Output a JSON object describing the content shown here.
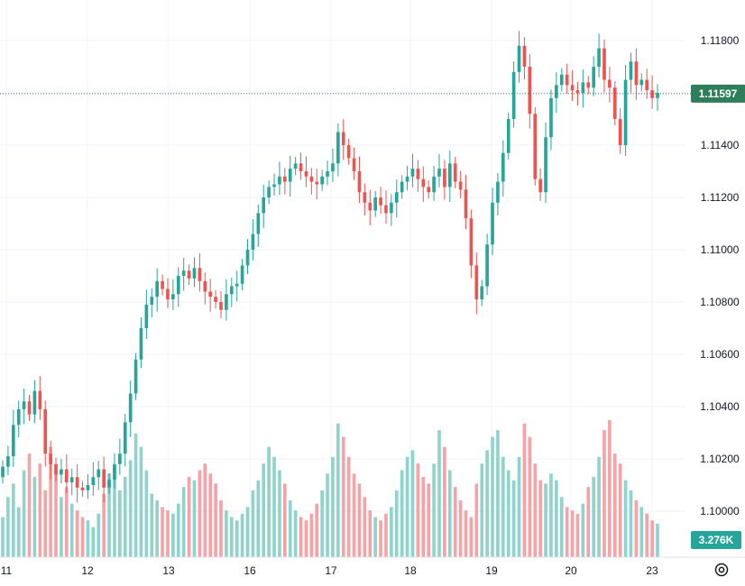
{
  "chart_data": {
    "type": "candlestick",
    "title": "",
    "xlabel": "",
    "ylabel": "",
    "ylim": [
      1.0985,
      1.119
    ],
    "y_ticks": [
      "1.11800",
      "1.11600",
      "1.11400",
      "1.11200",
      "1.11000",
      "1.10800",
      "1.10600",
      "1.10400",
      "1.10200",
      "1.10000"
    ],
    "y_tick_values": [
      1.118,
      1.116,
      1.114,
      1.112,
      1.11,
      1.108,
      1.106,
      1.104,
      1.102,
      1.1
    ],
    "x_ticks": [
      "11",
      "12",
      "13",
      "16",
      "17",
      "18",
      "19",
      "20",
      "23"
    ],
    "last_price": "1.11597",
    "last_price_value": 1.11597,
    "volume_label": "3.276K",
    "grid": true,
    "colors": {
      "up": "#26a69a",
      "down": "#ef5350",
      "up_volume": "#8fd4cc",
      "down_volume": "#f5a3a6",
      "price_badge": "#2e7d5b",
      "volume_badge": "#26a69a",
      "grid": "#f0f3fa"
    },
    "price_series": [
      1.1017,
      1.1021,
      1.1033,
      1.1039,
      1.1042,
      1.1037,
      1.1046,
      1.1039,
      1.1022,
      1.1018,
      1.1014,
      1.1016,
      1.1011,
      1.1013,
      1.1009,
      1.1008,
      1.101,
      1.1013,
      1.1016,
      1.1009,
      1.1012,
      1.1018,
      1.1022,
      1.1034,
      1.1045,
      1.1058,
      1.107,
      1.1079,
      1.1082,
      1.1088,
      1.1085,
      1.1081,
      1.1083,
      1.109,
      1.1092,
      1.1089,
      1.1093,
      1.1088,
      1.1084,
      1.1082,
      1.108,
      1.1077,
      1.1083,
      1.1086,
      1.1087,
      1.1094,
      1.11,
      1.1106,
      1.1114,
      1.112,
      1.1124,
      1.1125,
      1.1128,
      1.1126,
      1.1131,
      1.1133,
      1.113,
      1.1128,
      1.1126,
      1.1125,
      1.1128,
      1.113,
      1.1133,
      1.1145,
      1.114,
      1.1135,
      1.113,
      1.1122,
      1.1118,
      1.1115,
      1.112,
      1.1117,
      1.1114,
      1.1118,
      1.1122,
      1.1126,
      1.1128,
      1.1131,
      1.1127,
      1.1124,
      1.1122,
      1.1128,
      1.1131,
      1.1124,
      1.1133,
      1.1126,
      1.1123,
      1.1112,
      1.1094,
      1.1081,
      1.1086,
      1.1102,
      1.1118,
      1.1126,
      1.1137,
      1.115,
      1.1168,
      1.1178,
      1.117,
      1.1152,
      1.1127,
      1.1122,
      1.1143,
      1.1158,
      1.1163,
      1.1167,
      1.1163,
      1.1161,
      1.116,
      1.1164,
      1.1162,
      1.117,
      1.1177,
      1.1165,
      1.1162,
      1.115,
      1.114,
      1.1165,
      1.1172,
      1.1163,
      1.1165,
      1.1161,
      1.1158,
      1.116
    ],
    "volume_series": [
      120,
      180,
      220,
      150,
      260,
      310,
      240,
      280,
      200,
      330,
      260,
      180,
      210,
      160,
      140,
      120,
      110,
      90,
      130,
      190,
      250,
      270,
      200,
      240,
      290,
      370,
      330,
      260,
      190,
      170,
      150,
      140,
      130,
      160,
      210,
      240,
      230,
      260,
      280,
      250,
      220,
      170,
      140,
      120,
      110,
      130,
      150,
      200,
      230,
      280,
      330,
      300,
      260,
      220,
      170,
      140,
      120,
      110,
      130,
      160,
      200,
      250,
      300,
      400,
      360,
      300,
      250,
      220,
      180,
      140,
      120,
      110,
      130,
      150,
      200,
      260,
      300,
      320,
      280,
      240,
      220,
      280,
      380,
      330,
      260,
      210,
      170,
      140,
      120,
      220,
      280,
      320,
      360,
      380,
      300,
      260,
      230,
      300,
      400,
      360,
      280,
      230,
      220,
      250,
      230,
      180,
      150,
      140,
      130,
      160,
      210,
      240,
      300,
      380,
      410,
      310,
      280,
      230,
      200,
      170,
      150,
      130,
      110,
      100
    ]
  }
}
